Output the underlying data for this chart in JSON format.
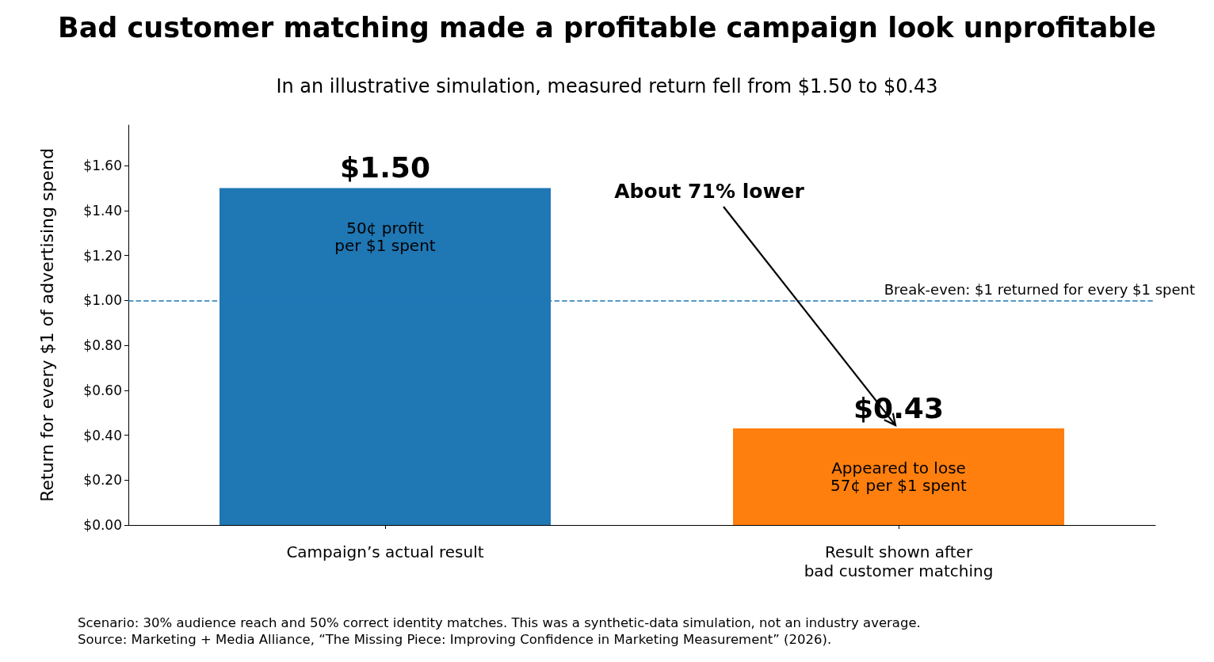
{
  "chart_data": {
    "type": "bar",
    "title": "Bad customer matching made a profitable campaign look unprofitable",
    "subtitle": "In an illustrative simulation, measured return fell from $1.50 to $0.43",
    "ylabel": "Return for every $1 of advertising spend",
    "categories": [
      "Campaign’s actual result",
      "Result shown after\nbad customer matching"
    ],
    "values": [
      1.5,
      0.43
    ],
    "colors": [
      "#1f77b4",
      "#ff7f0e"
    ],
    "value_labels": [
      "$1.50",
      "$0.43"
    ],
    "ylim": [
      0,
      1.78
    ],
    "yticks": [
      {
        "value": 0,
        "label": "$0.00"
      },
      {
        "value": 0.2,
        "label": "$0.20"
      },
      {
        "value": 0.4,
        "label": "$0.40"
      },
      {
        "value": 0.6,
        "label": "$0.60"
      },
      {
        "value": 0.8,
        "label": "$0.80"
      },
      {
        "value": 1,
        "label": "$1.00"
      },
      {
        "value": 1.2,
        "label": "$1.20"
      },
      {
        "value": 1.4,
        "label": "$1.40"
      },
      {
        "value": 1.6,
        "label": "$1.60"
      }
    ],
    "grid": false,
    "ref_lines": [
      {
        "axis": "y",
        "value": 1,
        "label": "Break-even: $1 returned for every $1 spent",
        "color": "#1f77b4",
        "line_style": "dashed"
      }
    ],
    "annotations": [
      "50¢ profit\nper $1 spent",
      "Appeared to lose\n57¢ per $1 spent",
      {
        "text": "About 71% lower",
        "x": "Result shown after\nbad customer matching",
        "y": 0.43
      },
      "Scenario: 30% audience reach and 50% correct identity matches. This was a synthetic-data simulation, not an industry average.\nSource: Marketing + Media Alliance, “The Missing Piece: Improving Confidence in Marketing Measurement” (2026)."
    ]
  }
}
